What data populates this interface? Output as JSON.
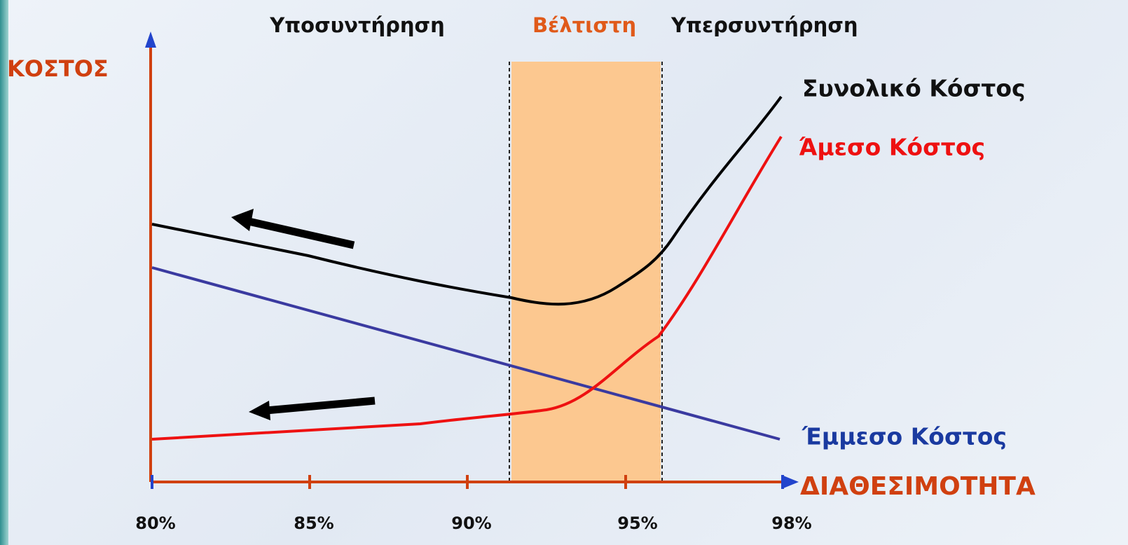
{
  "header": {
    "left": "Υποσυντήρηση",
    "middle": "Βέλτιστη",
    "right": "Υπερσυντήρηση"
  },
  "axes": {
    "y_label": "ΚΟΣΤΟΣ",
    "x_label": "ΔΙΑΘΕΣΙΜΟΤΗΤΑ",
    "x_ticks": [
      "80%",
      "85%",
      "90%",
      "95%",
      "98%"
    ]
  },
  "curves": {
    "total": "Συνολικό Κόστος",
    "direct": "Άμεσο Κόστος",
    "indirect": "Έμμεσο Κόστος"
  }
}
